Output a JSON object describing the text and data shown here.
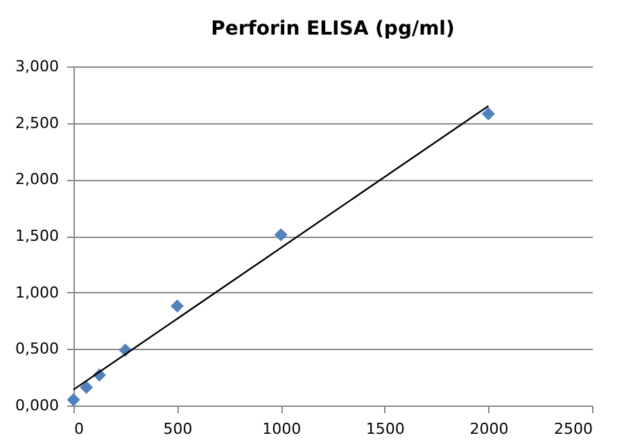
{
  "chart_data": {
    "type": "scatter",
    "title": "Perforin ELISA (pg/ml)",
    "series": [
      {
        "color": "#4f81bd",
        "x": [
          0,
          62.5,
          125,
          250,
          500,
          1000,
          2000
        ],
        "values": [
          0.05,
          0.16,
          0.27,
          0.49,
          0.88,
          1.51,
          2.58
        ],
        "marker": "diamond"
      },
      {
        "type": "line",
        "color": "#000000",
        "x": [
          0,
          2000
        ],
        "values": [
          0.14,
          2.65
        ],
        "marker": "none",
        "line_style": "solid"
      }
    ],
    "xlim": [
      0,
      2500
    ],
    "xticks": [
      0,
      500,
      1000,
      1500,
      2000,
      2500
    ],
    "ylim": [
      0,
      3
    ],
    "yticks": [
      {
        "value": 0,
        "label": "0,000"
      },
      {
        "value": 0.5,
        "label": "0,500"
      },
      {
        "value": 1,
        "label": "1,000"
      },
      {
        "value": 1.5,
        "label": "1,500"
      },
      {
        "value": 2,
        "label": "2,000"
      },
      {
        "value": 2.5,
        "label": "2,500"
      },
      {
        "value": 3,
        "label": "3,000"
      }
    ],
    "grid": "y"
  }
}
